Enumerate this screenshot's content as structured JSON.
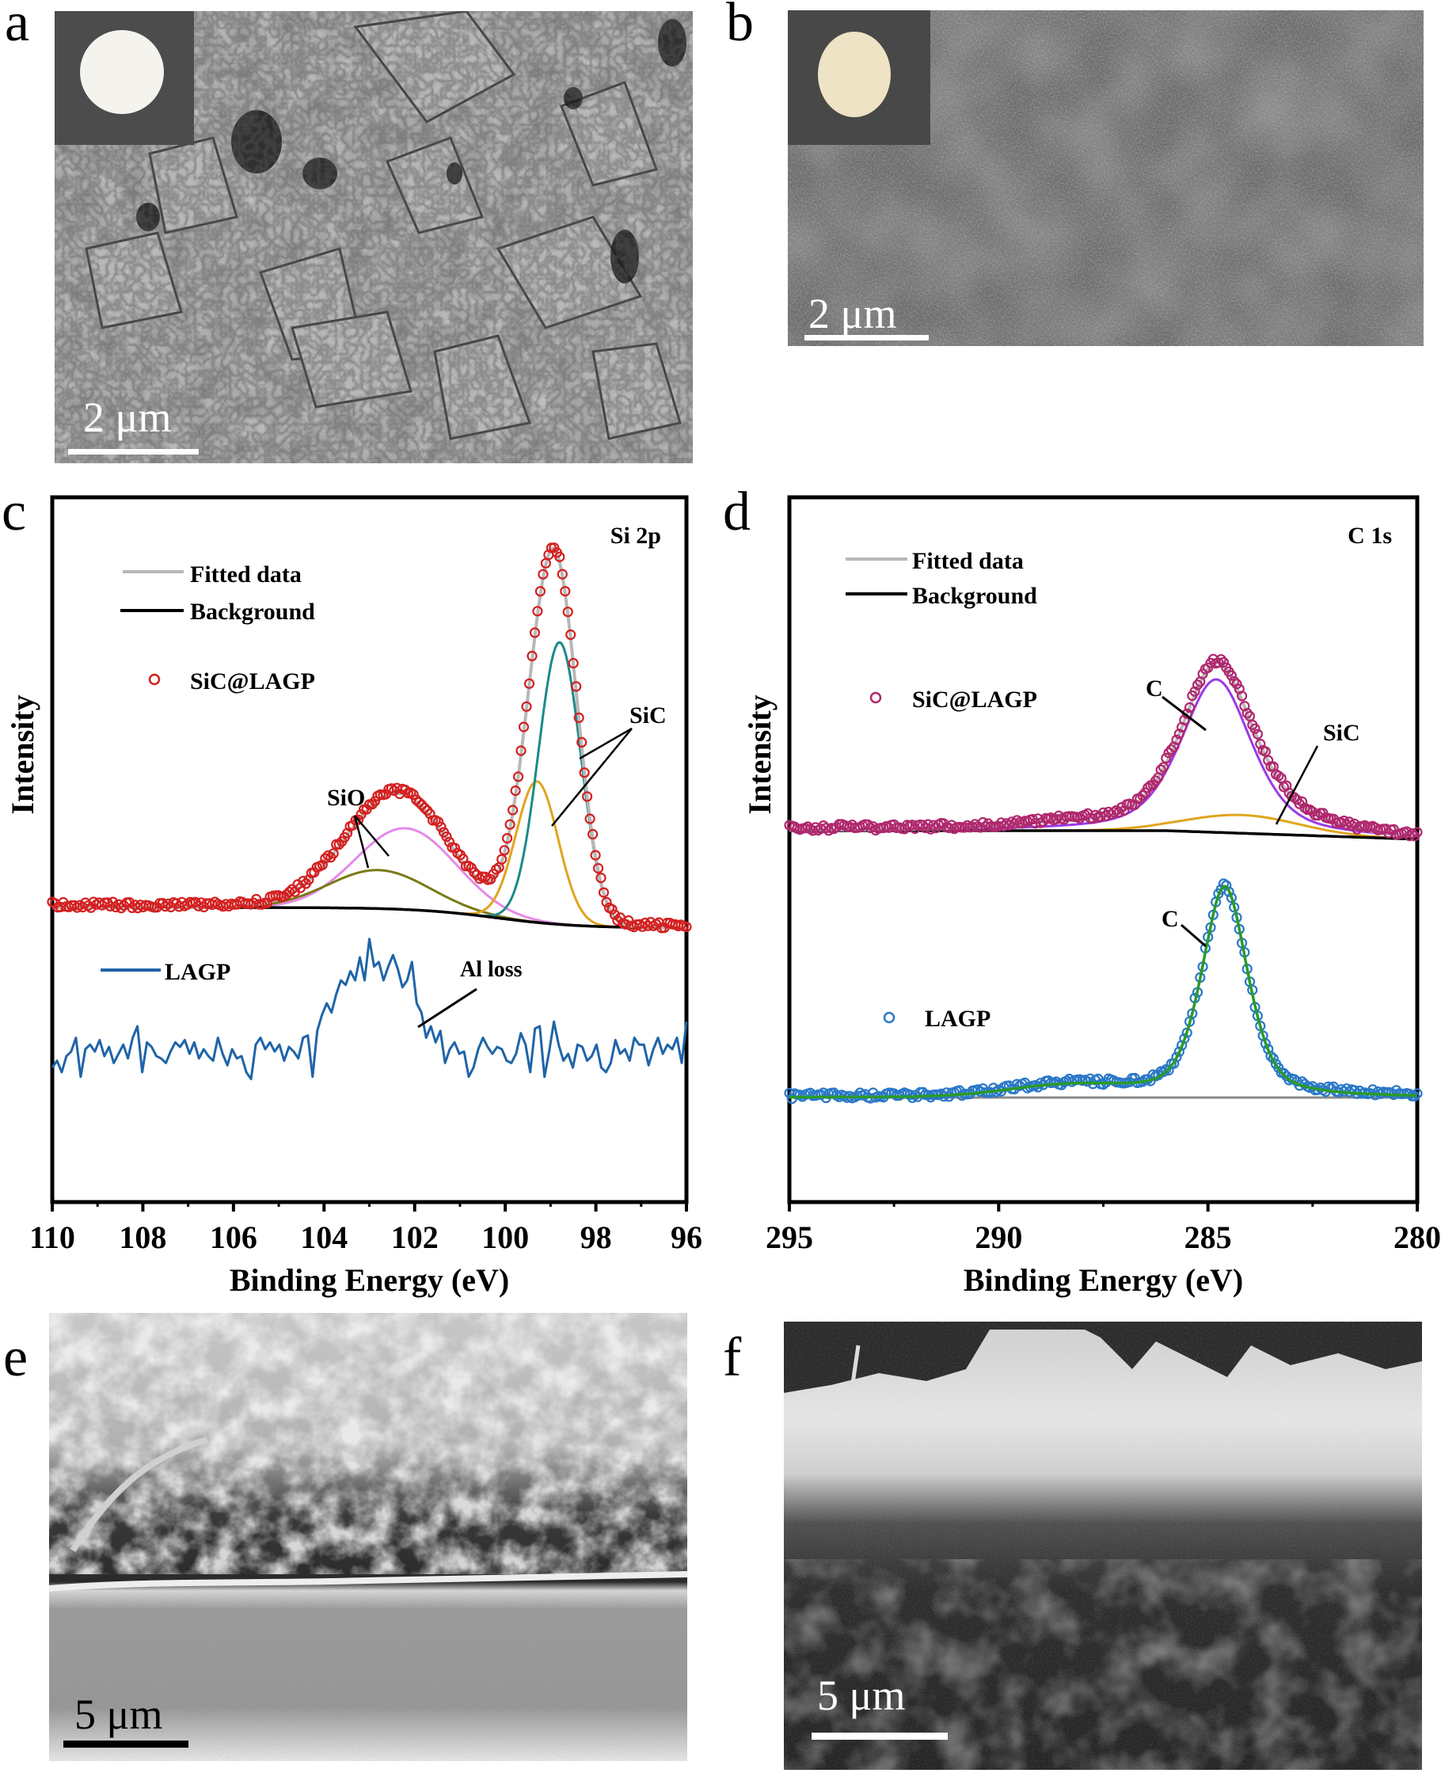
{
  "panels": {
    "a": {
      "label": "a",
      "scale_text": "2 μm",
      "inset_disk_color": "#f4f3ee"
    },
    "b": {
      "label": "b",
      "scale_text": "2 μm",
      "inset_disk_color": "#eee3c4"
    },
    "c": {
      "label": "c"
    },
    "d": {
      "label": "d"
    },
    "e": {
      "label": "e",
      "scale_text": "5 μm"
    },
    "f": {
      "label": "f",
      "scale_text": "5 μm"
    }
  },
  "chart_data": [
    {
      "panel": "c",
      "type": "line",
      "title": "Si 2p",
      "xlabel": "Binding Energy (eV)",
      "ylabel": "Intensity",
      "xlim": [
        110,
        96
      ],
      "x_ticks": [
        110,
        108,
        106,
        104,
        102,
        100,
        98,
        96
      ],
      "grid": false,
      "legend": [
        {
          "label": "Fitted data",
          "style": "line",
          "color": "#b8b8b8"
        },
        {
          "label": "Background",
          "style": "line",
          "color": "#000000"
        },
        {
          "label": "SiC@LAGP",
          "style": "open-circle",
          "color": "#d42020"
        },
        {
          "label": "LAGP",
          "style": "line",
          "color": "#1f64a8"
        }
      ],
      "annotations": [
        {
          "text": "SiO",
          "x": 102.9,
          "points_to": [
            "SiO component (102.5)",
            "SiO component (103.0)"
          ]
        },
        {
          "text": "SiC",
          "x": 98.3,
          "points_to": [
            "SiC component (98.8)",
            "SiC component (99.3)"
          ]
        },
        {
          "text": "Al loss",
          "x": 101.4,
          "points_to": [
            "LAGP trace (102.0)"
          ]
        }
      ],
      "series": [
        {
          "name": "SiC@LAGP background",
          "color": "#000000",
          "baseline_left": 1146,
          "baseline_right": 1172
        },
        {
          "name": "SiO component 1",
          "color": "#e48ae8",
          "center": 102.2,
          "height": 0.19,
          "fwhm": 2.6
        },
        {
          "name": "SiO component 2",
          "color": "#7a7a18",
          "center": 102.8,
          "height": 0.09,
          "fwhm": 2.6
        },
        {
          "name": "SiC component 1",
          "color": "#e0a51e",
          "center": 99.3,
          "height": 0.33,
          "fwhm": 1.1
        },
        {
          "name": "SiC component 2",
          "color": "#1b8a8a",
          "center": 98.8,
          "height": 0.66,
          "fwhm": 1.1
        },
        {
          "name": "Fitted data",
          "color": "#b8b8b8"
        },
        {
          "name": "SiC@LAGP",
          "color": "#d42020",
          "marker": "open-circle"
        },
        {
          "name": "LAGP",
          "color": "#1f64a8",
          "x_start": 110,
          "x_end": 96,
          "values": [
            0.42,
            0.45,
            0.4,
            0.47,
            0.49,
            0.55,
            0.38,
            0.5,
            0.52,
            0.49,
            0.54,
            0.47,
            0.51,
            0.44,
            0.48,
            0.52,
            0.46,
            0.55,
            0.6,
            0.4,
            0.53,
            0.51,
            0.47,
            0.46,
            0.44,
            0.49,
            0.53,
            0.51,
            0.54,
            0.48,
            0.53,
            0.46,
            0.5,
            0.47,
            0.45,
            0.55,
            0.48,
            0.43,
            0.5,
            0.46,
            0.47,
            0.4,
            0.37,
            0.52,
            0.55,
            0.5,
            0.53,
            0.49,
            0.52,
            0.45,
            0.51,
            0.49,
            0.46,
            0.55,
            0.56,
            0.38,
            0.58,
            0.65,
            0.7,
            0.66,
            0.74,
            0.8,
            0.78,
            0.84,
            0.8,
            0.9,
            0.8,
            0.98,
            0.86,
            0.88,
            0.8,
            0.86,
            0.91,
            0.85,
            0.77,
            0.8,
            0.88,
            0.7,
            0.66,
            0.55,
            0.6,
            0.53,
            0.58,
            0.44,
            0.5,
            0.53,
            0.48,
            0.49,
            0.38,
            0.42,
            0.5,
            0.55,
            0.51,
            0.48,
            0.51,
            0.5,
            0.45,
            0.44,
            0.48,
            0.57,
            0.52,
            0.4,
            0.59,
            0.6,
            0.38,
            0.49,
            0.62,
            0.52,
            0.45,
            0.48,
            0.42,
            0.52,
            0.51,
            0.45,
            0.47,
            0.52,
            0.42,
            0.4,
            0.44,
            0.54,
            0.48,
            0.5,
            0.45,
            0.55,
            0.52,
            0.52,
            0.43,
            0.5,
            0.55,
            0.48,
            0.52,
            0.5,
            0.55,
            0.44,
            0.62
          ]
        }
      ]
    },
    {
      "panel": "d",
      "type": "line",
      "title": "C 1s",
      "xlabel": "Binding Energy (eV)",
      "ylabel": "Intensity",
      "xlim": [
        295,
        280
      ],
      "x_ticks": [
        295,
        290,
        285,
        280
      ],
      "grid": false,
      "legend": [
        {
          "label": "Fitted data",
          "style": "line",
          "color": "#b8b8b8"
        },
        {
          "label": "Background",
          "style": "line",
          "color": "#000000"
        },
        {
          "label": "SiC@LAGP",
          "style": "open-circle",
          "color": "#b0286e"
        },
        {
          "label": "LAGP",
          "style": "open-circle",
          "color": "#2a78c8"
        }
      ],
      "annotations": [
        {
          "text": "C",
          "x": 285.8,
          "points_to": [
            "SiC@LAGP C component (284.8)"
          ]
        },
        {
          "text": "SiC",
          "x": 283.6,
          "points_to": [
            "SiC@LAGP SiC component (284.3)"
          ]
        },
        {
          "text": "C",
          "x": 285.8,
          "points_to": [
            "LAGP C peak (284.6)"
          ]
        }
      ],
      "series": [
        {
          "name": "SiC@LAGP C component",
          "color": "#9a3ae8",
          "center": 284.8,
          "height": 0.42,
          "fwhm": 2.0
        },
        {
          "name": "SiC@LAGP SiC component",
          "color": "#e0a51e",
          "center": 284.2,
          "height": 0.05,
          "fwhm": 3.2
        },
        {
          "name": "SiC@LAGP fitted",
          "color": "#b8b8b8",
          "center": 284.7,
          "height": 0.48,
          "fwhm": 2.3
        },
        {
          "name": "SiC@LAGP",
          "color": "#b0286e",
          "marker": "open-circle"
        },
        {
          "name": "LAGP fitted",
          "color": "#2a9a2a",
          "center": 284.6,
          "height": 0.58,
          "fwhm": 1.3
        },
        {
          "name": "LAGP background",
          "color": "#8a8a8a"
        },
        {
          "name": "LAGP",
          "color": "#2a78c8",
          "marker": "open-circle"
        }
      ]
    }
  ]
}
